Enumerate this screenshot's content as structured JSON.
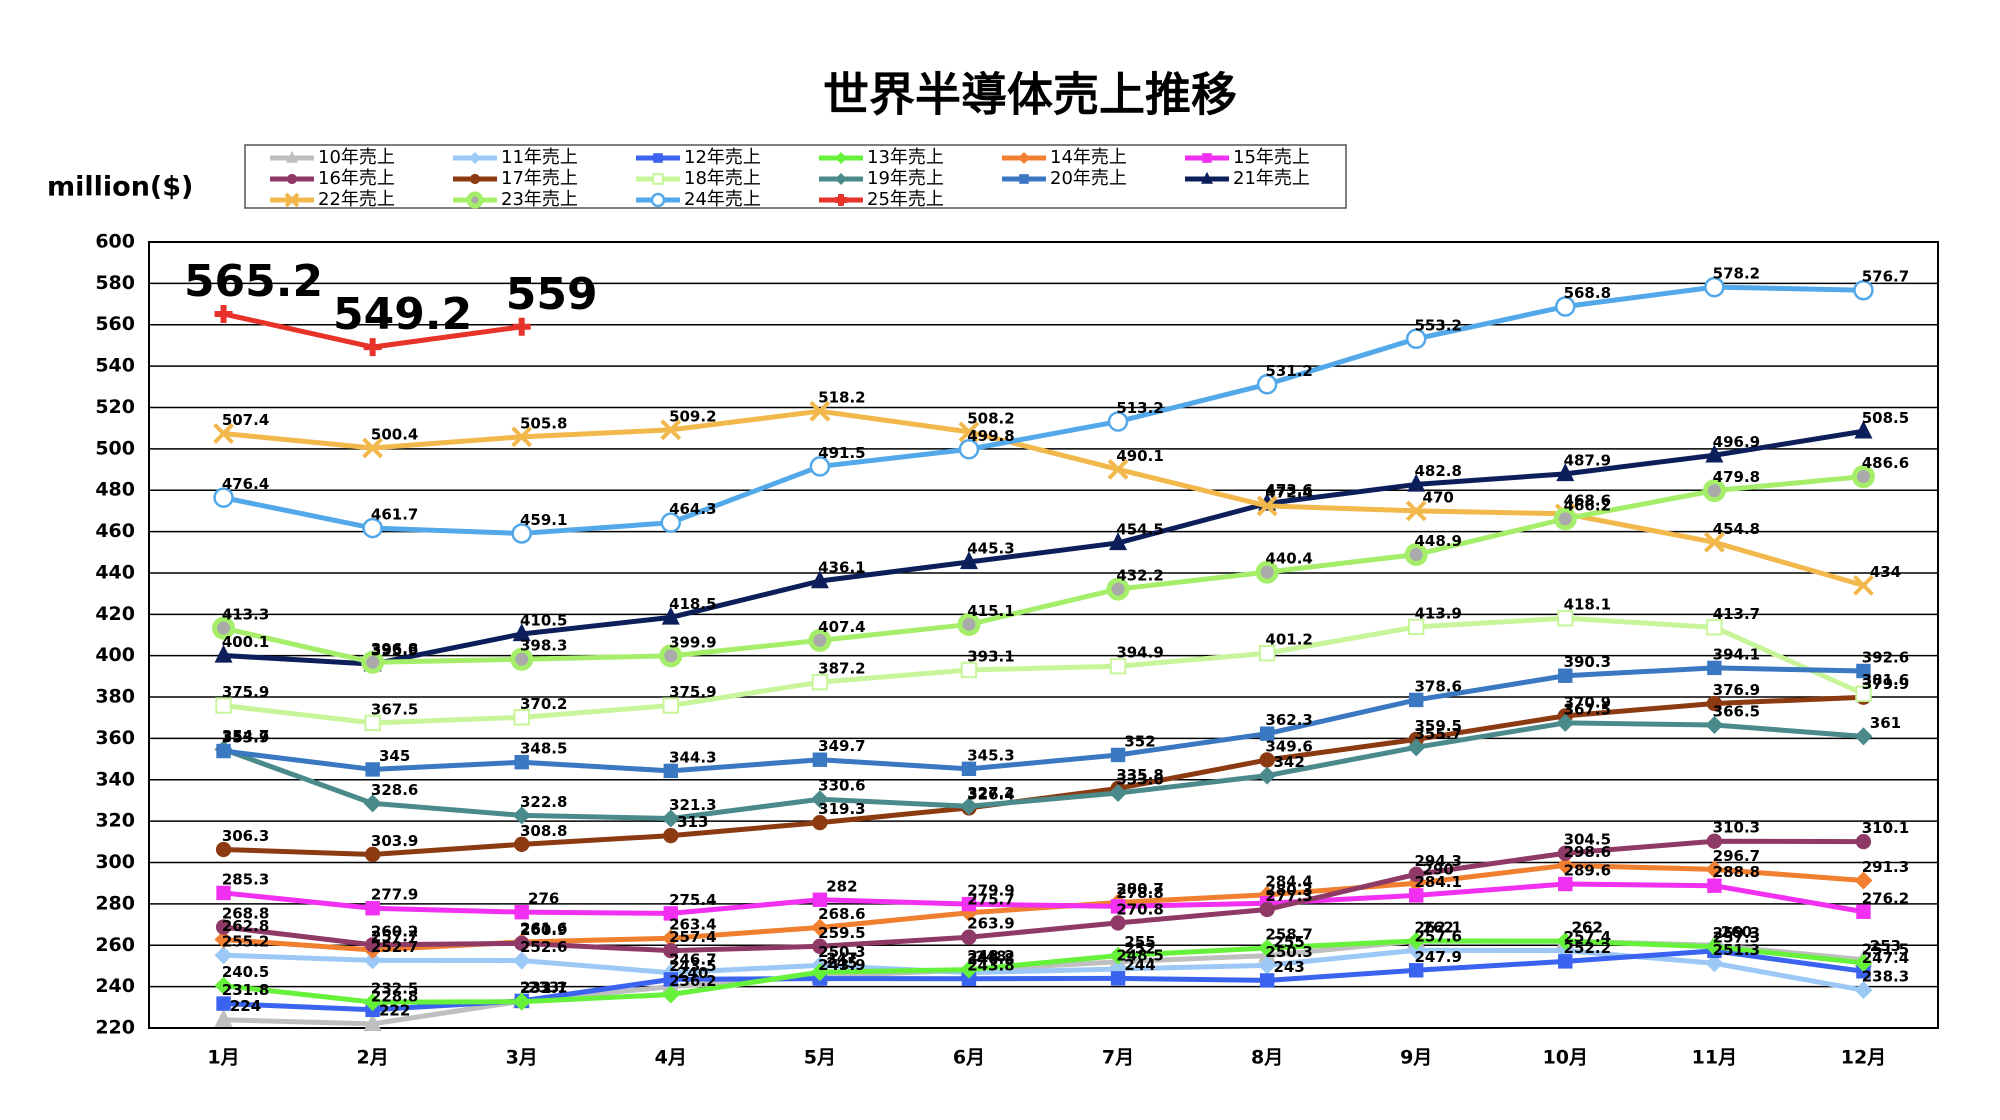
{
  "chart_data": {
    "type": "line",
    "title": "世界半導体売上推移",
    "y_label": "million($)",
    "categories": [
      "1月",
      "2月",
      "3月",
      "4月",
      "5月",
      "6月",
      "7月",
      "8月",
      "9月",
      "10月",
      "11月",
      "12月"
    ],
    "ylim": [
      220,
      600
    ],
    "yticks": [
      220,
      240,
      260,
      280,
      300,
      320,
      340,
      360,
      380,
      400,
      420,
      440,
      460,
      480,
      500,
      520,
      540,
      560,
      580,
      600
    ],
    "grid": true,
    "series": [
      {
        "name": "10年売上",
        "color": "#bfbfbf",
        "marker": "triangle",
        "values": [
          224,
          222,
          233,
          240,
          245,
          248,
          252,
          255,
          262,
          262,
          260,
          253
        ]
      },
      {
        "name": "11年売上",
        "color": "#9cc8f5",
        "marker": "diamond",
        "values": [
          255.2,
          252.7,
          252.6,
          246.7,
          250.3,
          246.8,
          248.5,
          250.3,
          257.6,
          257.4,
          251.3,
          238.3
        ]
      },
      {
        "name": "12年売上",
        "color": "#3a63f0",
        "marker": "square",
        "values": [
          231.8,
          228.8,
          233.1,
          243.5,
          243.9,
          243.8,
          244,
          243,
          247.9,
          252.2,
          257.3,
          247.4
        ]
      },
      {
        "name": "13年売上",
        "color": "#66f23a",
        "marker": "diamond",
        "values": [
          240.5,
          232.5,
          232.7,
          236.2,
          247,
          248.2,
          255,
          258.7,
          262.1,
          262,
          259.3,
          251.5
        ]
      },
      {
        "name": "14年売上",
        "color": "#f07f30",
        "marker": "diamond",
        "values": [
          262.8,
          257.7,
          261.6,
          263.4,
          268.6,
          275.7,
          280.7,
          284.4,
          290,
          298.6,
          296.7,
          291.3
        ]
      },
      {
        "name": "15年売上",
        "color": "#f230f2",
        "marker": "square",
        "values": [
          285.3,
          277.9,
          276,
          275.4,
          282,
          279.9,
          278.8,
          280.3,
          284.1,
          289.6,
          288.8,
          276.2
        ]
      },
      {
        "name": "16年売上",
        "color": "#8f3a66",
        "marker": "circle",
        "values": [
          268.8,
          260.2,
          260.9,
          257.4,
          259.5,
          263.9,
          270.8,
          277.3,
          294.3,
          304.5,
          310.3,
          310.1
        ]
      },
      {
        "name": "17年売上",
        "color": "#8b3a12",
        "marker": "circle",
        "values": [
          306.3,
          303.9,
          308.8,
          313,
          319.3,
          326.4,
          335.8,
          349.6,
          359.5,
          370.9,
          376.9,
          379.9
        ]
      },
      {
        "name": "18年売上",
        "color": "#c8f59a",
        "marker": "square-open",
        "values": [
          375.9,
          367.5,
          370.2,
          375.9,
          387.2,
          393.1,
          394.9,
          401.2,
          413.9,
          418.1,
          413.7,
          381.6
        ]
      },
      {
        "name": "19年売上",
        "color": "#4a8a8a",
        "marker": "diamond",
        "values": [
          354.7,
          328.6,
          322.8,
          321.3,
          330.6,
          327.2,
          333.6,
          342,
          355.7,
          367.5,
          366.5,
          361
        ]
      },
      {
        "name": "20年売上",
        "color": "#3a78c2",
        "marker": "square",
        "values": [
          353.9,
          345,
          348.5,
          344.3,
          349.7,
          345.3,
          352,
          362.3,
          378.6,
          390.3,
          394.1,
          392.6
        ]
      },
      {
        "name": "21年売上",
        "color": "#0d1f5a",
        "marker": "triangle",
        "values": [
          400.1,
          395.9,
          410.5,
          418.5,
          436.1,
          445.3,
          454.5,
          473.6,
          482.8,
          487.9,
          496.9,
          508.5
        ]
      },
      {
        "name": "22年売上",
        "color": "#f2b84c",
        "marker": "x",
        "values": [
          507.4,
          500.4,
          505.8,
          509.2,
          518.2,
          508.2,
          490.1,
          472.4,
          470,
          468.6,
          454.8,
          434
        ]
      },
      {
        "name": "23年売上",
        "color": "#a5ee6a",
        "marker": "circle-dot",
        "values": [
          413.3,
          396.8,
          398.3,
          399.9,
          407.4,
          415.1,
          432.2,
          440.4,
          448.9,
          466.2,
          479.8,
          486.6
        ]
      },
      {
        "name": "24年売上",
        "color": "#52a8e8",
        "marker": "circle-open",
        "values": [
          476.4,
          461.7,
          459.1,
          464.3,
          491.5,
          499.8,
          513.2,
          531.2,
          553.2,
          568.8,
          578.2,
          576.7
        ]
      },
      {
        "name": "25年売上",
        "color": "#e8332a",
        "marker": "plus",
        "values": [
          565.2,
          549.2,
          559,
          null,
          null,
          null,
          null,
          null,
          null,
          null,
          null,
          null
        ]
      }
    ]
  }
}
